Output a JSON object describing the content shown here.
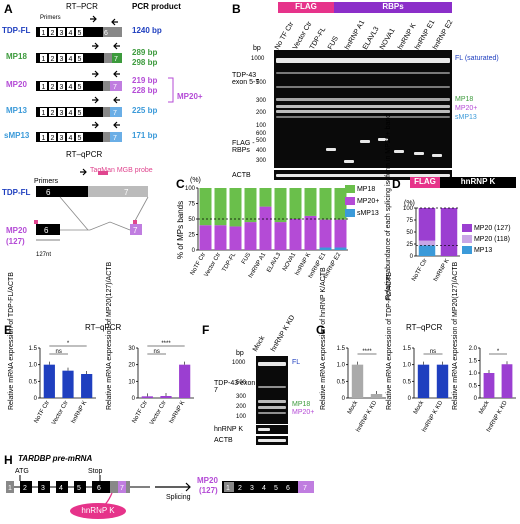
{
  "panels": {
    "A": {
      "label": "A",
      "header": "RT–PCR",
      "product_header": "PCR product",
      "primers": "Primers",
      "rows": [
        {
          "name": "TDP-FL",
          "color": "#1f3fbf",
          "product": "1240 bp"
        },
        {
          "name": "MP18",
          "color": "#3c9a3c",
          "product": "289 bp",
          "product2": "298 bp"
        },
        {
          "name": "MP20",
          "color": "#b44bd6",
          "product": "219 bp",
          "product2": "228 bp"
        },
        {
          "name": "MP13",
          "color": "#3b9ad9",
          "product": "225 bp"
        },
        {
          "name": "sMP13",
          "color": "#3b9ad9",
          "product": "171 bp"
        }
      ],
      "bracket_label": "MP20+",
      "qpcr_header": "RT–qPCR",
      "probe": "TaqMan MGB probe",
      "qpcr_rows": [
        {
          "name": "TDP-FL",
          "color": "#1f3fbf"
        },
        {
          "name": "MP20",
          "sub": "(127)",
          "color": "#b44bd6"
        }
      ],
      "nt_label": "127nt",
      "exon_numbers": [
        "1",
        "2",
        "3",
        "4",
        "5",
        "6",
        "7"
      ]
    },
    "B": {
      "label": "B",
      "flag_tag": "FLAG",
      "rbp_tag": "RBPs",
      "lanes": [
        "No TF Ctr",
        "Vector Ctr",
        "TDP-FL",
        "FUS",
        "hnRNP A1",
        "ELAVL3",
        "NOVA1",
        "hnRNP K",
        "hnRNP E1",
        "hnRNP E2"
      ],
      "bp_label": "bp",
      "markers": [
        "1000",
        "500",
        "300",
        "200",
        "100"
      ],
      "gel_label": "TDP-43 exon 5-7",
      "flag_label": "FLAG -RBPs",
      "flag_markers": [
        "600",
        "500",
        "400",
        "300"
      ],
      "actb_label": "ACTB",
      "annotations": [
        {
          "text": "FL (saturated)",
          "color": "#1f3fbf"
        },
        {
          "text": "MP18",
          "color": "#3c9a3c"
        },
        {
          "text": "MP20+",
          "color": "#b44bd6"
        },
        {
          "text": "sMP13",
          "color": "#3b9ad9"
        }
      ]
    },
    "C": {
      "label": "C",
      "ylabel": "% of MPs bands",
      "unit": "(%)",
      "chart_data": {
        "type": "bar",
        "stacked": true,
        "categories": [
          "NoTF Ctr",
          "Vector Ctr",
          "TDP-FL",
          "FUS",
          "hnRNP A1",
          "ELAVL3",
          "NOVA1",
          "hnRNP K",
          "hnRNP E1",
          "hnRNP E2"
        ],
        "series": [
          {
            "name": "sMP13",
            "color": "#3b9ad9",
            "values": [
              0,
              0,
              0,
              0,
              0,
              0,
              0,
              0,
              4,
              4
            ]
          },
          {
            "name": "MP20+",
            "color": "#b44bd6",
            "values": [
              40,
              40,
              38,
              45,
              70,
              45,
              50,
              55,
              45,
              45
            ]
          },
          {
            "name": "MP18",
            "color": "#6abf4b",
            "values": [
              60,
              60,
              62,
              55,
              30,
              55,
              50,
              45,
              51,
              51
            ]
          }
        ],
        "ylim": [
          0,
          100
        ],
        "yticks": [
          0,
          25,
          50,
          75,
          100
        ],
        "dashed_line": 50
      }
    },
    "D": {
      "label": "D",
      "flag_tag": "FLAG",
      "rbp_tag": "hnRNP K",
      "ylabel": "Relative abundance of each splicing isoform in MP20+ band",
      "unit": "(%)",
      "chart_data": {
        "type": "bar",
        "stacked": true,
        "categories": [
          "NoTF Ctr",
          "hnRNP K"
        ],
        "series": [
          {
            "name": "MP13",
            "color": "#3b9ad9",
            "values": [
              22,
              0
            ]
          },
          {
            "name": "MP20 (118)",
            "color": "#c9a6e6",
            "values": [
              10,
              0
            ]
          },
          {
            "name": "MP20 (127)",
            "color": "#9b3fd1",
            "values": [
              68,
              100
            ]
          }
        ],
        "ylim": [
          0,
          100
        ],
        "yticks": [
          0,
          25,
          50,
          75,
          100
        ],
        "dashed_lines": [
          22,
          100
        ]
      }
    },
    "E": {
      "label": "E",
      "header": "RT–qPCR",
      "charts": [
        {
          "ylabel": "Relative mRNA expression of TDP-FL/ACTB",
          "chart_data": {
            "type": "bar",
            "categories": [
              "NoTF Ctr",
              "Vector Ctr",
              "hnRNP K"
            ],
            "values": [
              1.0,
              0.82,
              0.72
            ],
            "color": "#1f3fbf",
            "ylim": [
              0,
              1.5
            ],
            "yticks": [
              "0",
              "0.5",
              "1.0",
              "1.5"
            ],
            "sig": [
              {
                "text": "ns",
                "from": 0,
                "to": 1
              },
              {
                "text": "*",
                "from": 0,
                "to": 2
              }
            ]
          }
        },
        {
          "ylabel": "Relative mRNA expression of MP20(127)/ACTB",
          "chart_data": {
            "type": "bar",
            "categories": [
              "NoTF Ctr",
              "Vector Ctr",
              "hnRNP K"
            ],
            "values": [
              1.0,
              1.2,
              20
            ],
            "color": "#9b3fd1",
            "ylim": [
              0,
              30
            ],
            "yticks": [
              "0",
              "10",
              "20",
              "30"
            ],
            "sig": [
              {
                "text": "ns",
                "from": 0,
                "to": 1
              },
              {
                "text": "****",
                "from": 0,
                "to": 2
              }
            ]
          }
        }
      ]
    },
    "F": {
      "label": "F",
      "lanes": [
        "Mock",
        "hnRNP K KD"
      ],
      "bp_label": "bp",
      "markers": [
        "1000",
        "500",
        "300",
        "200",
        "100"
      ],
      "gel_label": "TDP-43 exon 5-7",
      "row2": "hnRNP K",
      "row3": "ACTB",
      "annotations": [
        {
          "text": "FL",
          "color": "#1f3fbf"
        },
        {
          "text": "MP18",
          "color": "#3c9a3c"
        },
        {
          "text": "MP20+",
          "color": "#b44bd6"
        }
      ]
    },
    "G": {
      "label": "G",
      "header": "RT–qPCR",
      "charts": [
        {
          "ylabel": "Relative mRNA expression of hnRNP K/ACTB",
          "chart_data": {
            "type": "bar",
            "categories": [
              "Mock",
              "hnRNP K KD"
            ],
            "values": [
              1.0,
              0.12
            ],
            "color": "#aaaaaa",
            "ylim": [
              0,
              1.5
            ],
            "yticks": [
              "0",
              "0.5",
              "1.0",
              "1.5"
            ],
            "sig": [
              {
                "text": "****"
              }
            ]
          }
        },
        {
          "ylabel": "Relative mRNA expression of TDP-FL/ACTB",
          "chart_data": {
            "type": "bar",
            "categories": [
              "Mock",
              "hnRNP K KD"
            ],
            "values": [
              1.0,
              1.0
            ],
            "color": "#1f3fbf",
            "ylim": [
              0,
              1.5
            ],
            "yticks": [
              "0",
              "0.5",
              "1.0",
              "1.5"
            ],
            "sig": [
              {
                "text": "ns"
              }
            ]
          }
        },
        {
          "ylabel": "Relative mRNA expression of MP20(127)/ACTB",
          "chart_data": {
            "type": "bar",
            "categories": [
              "Mock",
              "hnRNP K KD"
            ],
            "values": [
              1.0,
              1.35
            ],
            "color": "#9b3fd1",
            "ylim": [
              0,
              2.0
            ],
            "yticks": [
              "0",
              "0.5",
              "1.0",
              "1.5",
              "2.0"
            ],
            "sig": [
              {
                "text": "*"
              }
            ]
          }
        }
      ]
    },
    "H": {
      "label": "H",
      "title": "TARDBP pre-mRNA",
      "atg": "ATG",
      "stop": "Stop",
      "protein": "hnRNP K",
      "splicing": "Splicing",
      "product": "MP20",
      "product_sub": "(127)",
      "exons": [
        "1",
        "2",
        "3",
        "4",
        "5",
        "6",
        "7"
      ]
    }
  }
}
